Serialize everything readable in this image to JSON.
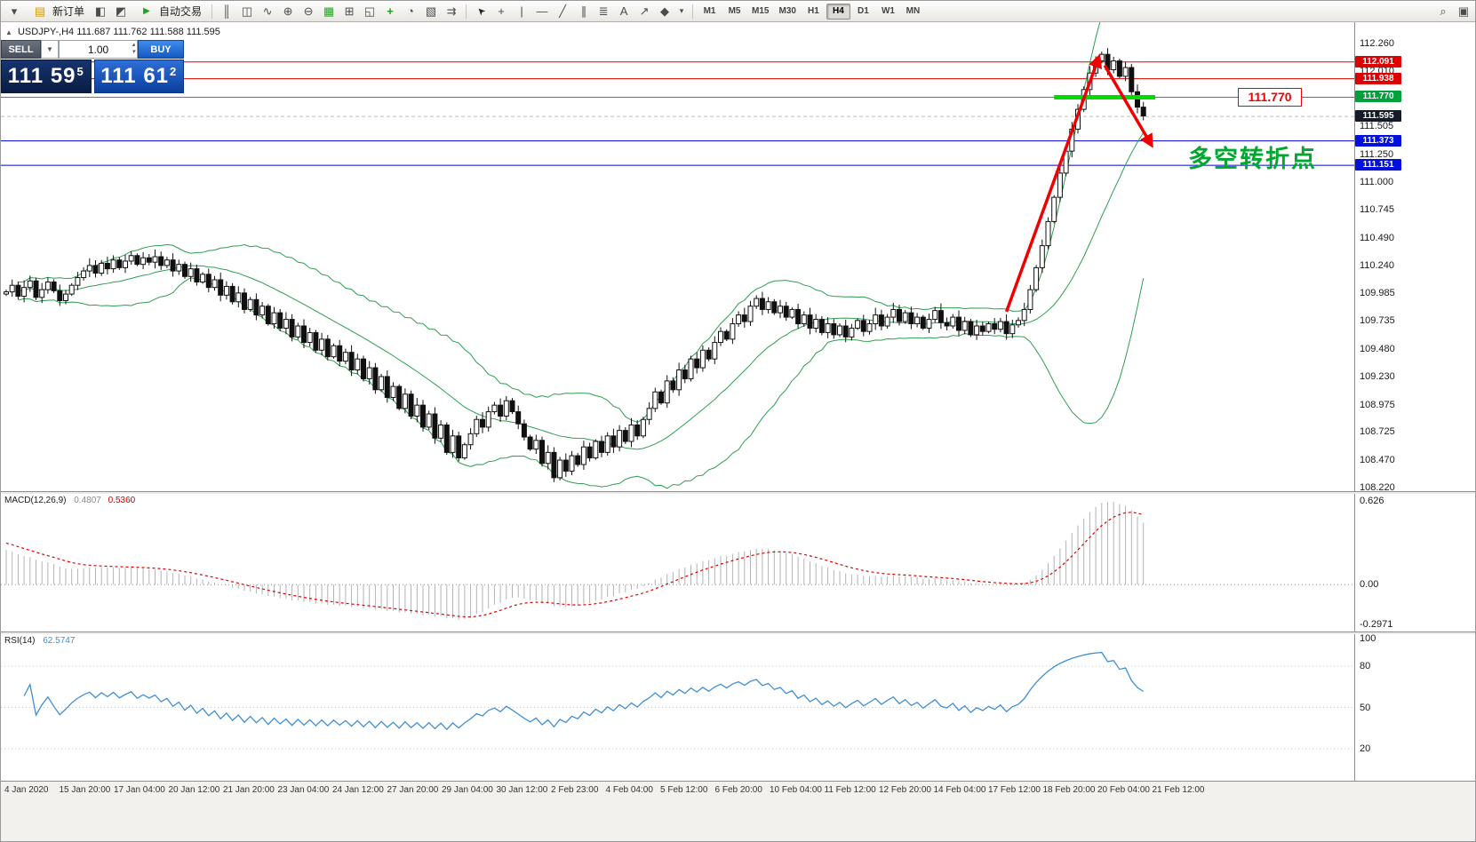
{
  "toolbar": {
    "new_order_label": "新订单",
    "autotrade_label": "自动交易",
    "timeframes": [
      "M1",
      "M5",
      "M15",
      "M30",
      "H1",
      "H4",
      "D1",
      "W1",
      "MN"
    ],
    "active_timeframe": "H4"
  },
  "icons": {
    "chart_menu": "▾",
    "new_order": "▤",
    "layouts": "◧",
    "profiles": "◩",
    "autotrade": "▶",
    "chart_bars": "║",
    "chart_candles": "◫",
    "chart_line": "∿",
    "zoom_in": "⊕",
    "zoom_out": "⊖",
    "grid": "▦",
    "tile_windows": "⊞",
    "cascade": "◱",
    "add_indicator": "+",
    "period": "◔",
    "templates": "▧",
    "chart_shift": "⇉",
    "cursor": "➤",
    "crosshair": "+",
    "vline": "|",
    "hline": "—",
    "trendline": "╱",
    "channel": "∥",
    "fibonacci": "≣",
    "text": "A",
    "arrows": "↗",
    "shapes": "◆",
    "shapes_caret": "▾",
    "search": "⌕",
    "window_list": "▣",
    "symbol_marker": "▲",
    "combo_caret": "▼",
    "spin_up": "▴",
    "spin_down": "▾"
  },
  "symbol_info": {
    "symbol": "USDJPY-,H4",
    "ohlc": "111.687 111.762 111.588 111.595"
  },
  "trade_panel": {
    "sell_label": "SELL",
    "buy_label": "BUY",
    "lot": "1.00",
    "sell_big": "111 59",
    "sell_sup": "5",
    "buy_big": "111 61",
    "buy_sup": "2"
  },
  "annotations": {
    "level_label": "111.770",
    "cn_note": "多空转折点"
  },
  "price_axis": {
    "ticks": [
      "112.260",
      "112.010",
      "111.505",
      "111.250",
      "111.000",
      "110.745",
      "110.490",
      "110.240",
      "109.985",
      "109.735",
      "109.480",
      "109.230",
      "108.975",
      "108.725",
      "108.470",
      "108.220"
    ],
    "badges": [
      {
        "value": "112.091",
        "color": "#dd0000"
      },
      {
        "value": "111.938",
        "color": "#dd0000"
      },
      {
        "value": "111.770",
        "color": "#00a03c"
      },
      {
        "value": "111.595",
        "color": "#151b26"
      },
      {
        "value": "111.373",
        "color": "#0010dd"
      },
      {
        "value": "111.151",
        "color": "#0010dd"
      }
    ]
  },
  "macd": {
    "label": "MACD(12,26,9)",
    "value_main": "0.4807",
    "value_signal": "0.5360",
    "axis": [
      "0.626",
      "0.00",
      "-0.2971"
    ]
  },
  "rsi": {
    "label": "RSI(14)",
    "value": "62.5747",
    "axis": [
      "100",
      "80",
      "50",
      "20"
    ]
  },
  "time_axis": {
    "labels": [
      "4 Jan 2020",
      "15 Jan 20:00",
      "17 Jan 04:00",
      "20 Jan 12:00",
      "21 Jan 20:00",
      "23 Jan 04:00",
      "24 Jan 12:00",
      "27 Jan 20:00",
      "29 Jan 04:00",
      "30 Jan 12:00",
      "2 Feb 23:00",
      "4 Feb 04:00",
      "5 Feb 12:00",
      "6 Feb 20:00",
      "10 Feb 04:00",
      "11 Feb 12:00",
      "12 Feb 20:00",
      "14 Feb 04:00",
      "17 Feb 12:00",
      "18 Feb 20:00",
      "20 Feb 04:00",
      "21 Feb 12:00"
    ]
  },
  "chart_data": {
    "type": "candlestick",
    "symbol": "USDJPY-",
    "timeframe": "H4",
    "ohlc_current": {
      "open": 111.687,
      "high": 111.762,
      "low": 111.588,
      "close": 111.595
    },
    "price_range": [
      108.22,
      112.42
    ],
    "wick": 0.05,
    "closes": [
      110.0,
      110.06,
      109.96,
      110.04,
      110.1,
      109.95,
      110.02,
      110.09,
      110.01,
      109.92,
      109.98,
      110.06,
      110.13,
      110.19,
      110.24,
      110.17,
      110.26,
      110.21,
      110.29,
      110.22,
      110.28,
      110.33,
      110.25,
      110.31,
      110.27,
      110.32,
      110.24,
      110.29,
      110.19,
      110.25,
      110.14,
      110.21,
      110.09,
      110.16,
      110.04,
      110.11,
      109.97,
      110.05,
      109.91,
      109.99,
      109.84,
      109.93,
      109.79,
      109.87,
      109.71,
      109.81,
      109.67,
      109.75,
      109.59,
      109.69,
      109.54,
      109.63,
      109.47,
      109.57,
      109.41,
      109.51,
      109.37,
      109.45,
      109.29,
      109.39,
      109.21,
      109.31,
      109.11,
      109.23,
      109.04,
      109.14,
      108.94,
      109.07,
      108.87,
      108.97,
      108.77,
      108.89,
      108.67,
      108.79,
      108.54,
      108.69,
      108.49,
      108.61,
      108.71,
      108.84,
      108.77,
      108.91,
      108.97,
      108.87,
      109.01,
      108.91,
      108.8,
      108.68,
      108.57,
      108.65,
      108.44,
      108.54,
      108.31,
      108.47,
      108.37,
      108.51,
      108.43,
      108.59,
      108.49,
      108.64,
      108.54,
      108.69,
      108.59,
      108.74,
      108.64,
      108.79,
      108.69,
      108.84,
      108.94,
      109.09,
      108.99,
      109.19,
      109.11,
      109.29,
      109.21,
      109.39,
      109.31,
      109.47,
      109.39,
      109.54,
      109.64,
      109.57,
      109.71,
      109.79,
      109.73,
      109.87,
      109.94,
      109.84,
      109.91,
      109.81,
      109.87,
      109.77,
      109.84,
      109.71,
      109.79,
      109.67,
      109.75,
      109.63,
      109.71,
      109.61,
      109.69,
      109.59,
      109.67,
      109.74,
      109.64,
      109.71,
      109.79,
      109.69,
      109.77,
      109.84,
      109.73,
      109.81,
      109.71,
      109.77,
      109.67,
      109.75,
      109.83,
      109.72,
      109.69,
      109.77,
      109.65,
      109.73,
      109.61,
      109.69,
      109.64,
      109.71,
      109.66,
      109.73,
      109.62,
      109.7,
      109.74,
      109.84,
      110.02,
      110.22,
      110.42,
      110.64,
      110.86,
      111.08,
      111.28,
      111.48,
      111.66,
      111.84,
      111.99,
      112.1,
      112.16,
      112.02,
      112.1,
      111.96,
      112.04,
      111.82,
      111.68,
      111.6
    ],
    "bollinger": {
      "period": 20,
      "deviation": 2,
      "color": "#2e9e50"
    },
    "levels": [
      {
        "price": 112.091,
        "color": "#dd0000"
      },
      {
        "price": 111.938,
        "color": "#dd0000"
      },
      {
        "price": 111.77,
        "color": "#00b43c"
      },
      {
        "price": 111.373,
        "color": "#0000e0"
      },
      {
        "price": 111.151,
        "color": "#0000e0"
      },
      {
        "price": 111.595,
        "color": "#c0c0c0",
        "style": "dashed"
      }
    ],
    "annotations": {
      "highlight_segment": {
        "price": 111.77,
        "bar_start": 176,
        "bar_end": 193,
        "color": "#00dc00"
      },
      "arrow_color": "#f00000",
      "arrows": [
        {
          "from": [
            168,
            109.82
          ],
          "to": [
            183.5,
            112.13
          ]
        },
        {
          "from": [
            184.5,
            112.06
          ],
          "to": [
            192.3,
            111.34
          ]
        }
      ]
    },
    "macd_settings": {
      "fast": 12,
      "slow": 26,
      "signal": 9,
      "current": [
        0.4807,
        0.536
      ]
    },
    "rsi_settings": {
      "period": 14,
      "current": 62.5747
    }
  }
}
